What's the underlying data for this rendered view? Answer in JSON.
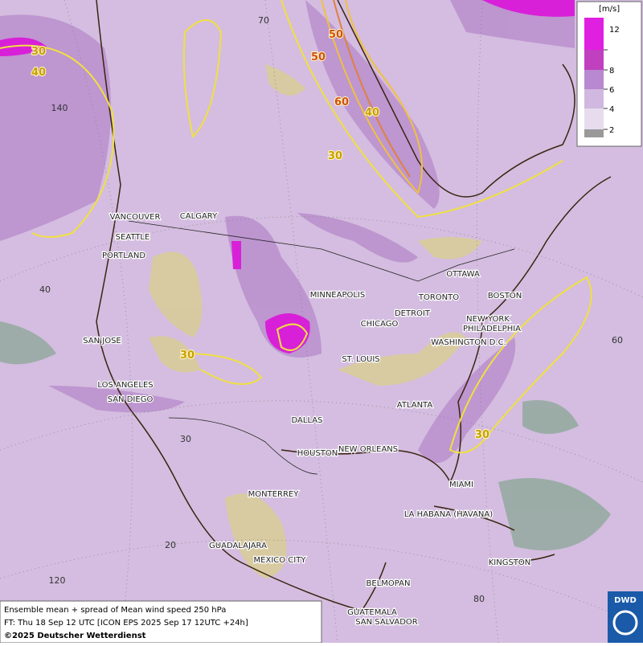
{
  "legend": {
    "unit": "[m/s]",
    "ticks": [
      12,
      8,
      6,
      4,
      2
    ]
  },
  "cities": [
    "VANCOUVER",
    "CALGARY",
    "SEATTLE",
    "PORTLAND",
    "MINNEAPOLIS",
    "SAN JOSE",
    "CHICAGO",
    "DETROIT",
    "TORONTO",
    "OTTAWA",
    "BOSTON",
    "NEW YORK",
    "PHILADELPHIA",
    "WASHINGTON D.C.",
    "ST. LOUIS",
    "LOS ANGELES",
    "SAN DIEGO",
    "ATLANTA",
    "DALLAS",
    "HOUSTON",
    "NEW ORLEANS",
    "MIAMI",
    "MONTERREY",
    "LA HABANA (HAVANA)",
    "GUADALAJARA",
    "MEXICO CITY",
    "KINGSTON",
    "BELMOPAN",
    "GUATEMALA",
    "SAN SALVADOR"
  ],
  "contour_labels": [
    30,
    40,
    50,
    50,
    60,
    40,
    30,
    30,
    30
  ],
  "grid_labels": [
    70,
    140,
    40,
    60,
    30,
    20,
    120,
    80
  ],
  "caption": {
    "line1": "Ensemble mean + spread of Mean wind speed 250 hPa",
    "line2": "FT: Thu 18 Sep 12 UTC [ICON EPS 2025 Sep 17 12UTC +24h]",
    "line3": "©2025 Deutscher Wetterdienst"
  },
  "logo": "DWD"
}
